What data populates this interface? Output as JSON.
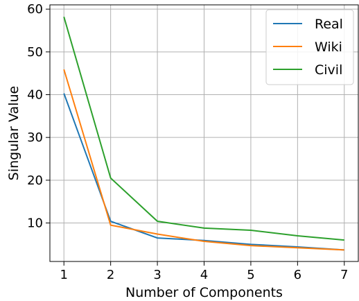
{
  "chart_data": {
    "type": "line",
    "title": "",
    "xlabel": "Number of Components",
    "ylabel": "Singular Value",
    "x": [
      1,
      2,
      3,
      4,
      5,
      6,
      7
    ],
    "xlim": [
      0.7,
      7.3
    ],
    "ylim": [
      1,
      61
    ],
    "xticks": [
      1,
      2,
      3,
      4,
      5,
      6,
      7
    ],
    "yticks": [
      10,
      20,
      30,
      40,
      50,
      60
    ],
    "grid": true,
    "legend_position": "top-right",
    "series": [
      {
        "name": "Real",
        "color": "#1f77b4",
        "values": [
          40.3,
          10.4,
          6.5,
          5.9,
          5.0,
          4.4,
          3.7
        ]
      },
      {
        "name": "Wiki",
        "color": "#ff7f0e",
        "values": [
          45.9,
          9.5,
          7.4,
          5.7,
          4.7,
          4.2,
          3.7
        ]
      },
      {
        "name": "Civil",
        "color": "#2ca02c",
        "values": [
          58.2,
          20.5,
          10.4,
          8.8,
          8.3,
          7.0,
          6.0
        ]
      }
    ]
  }
}
